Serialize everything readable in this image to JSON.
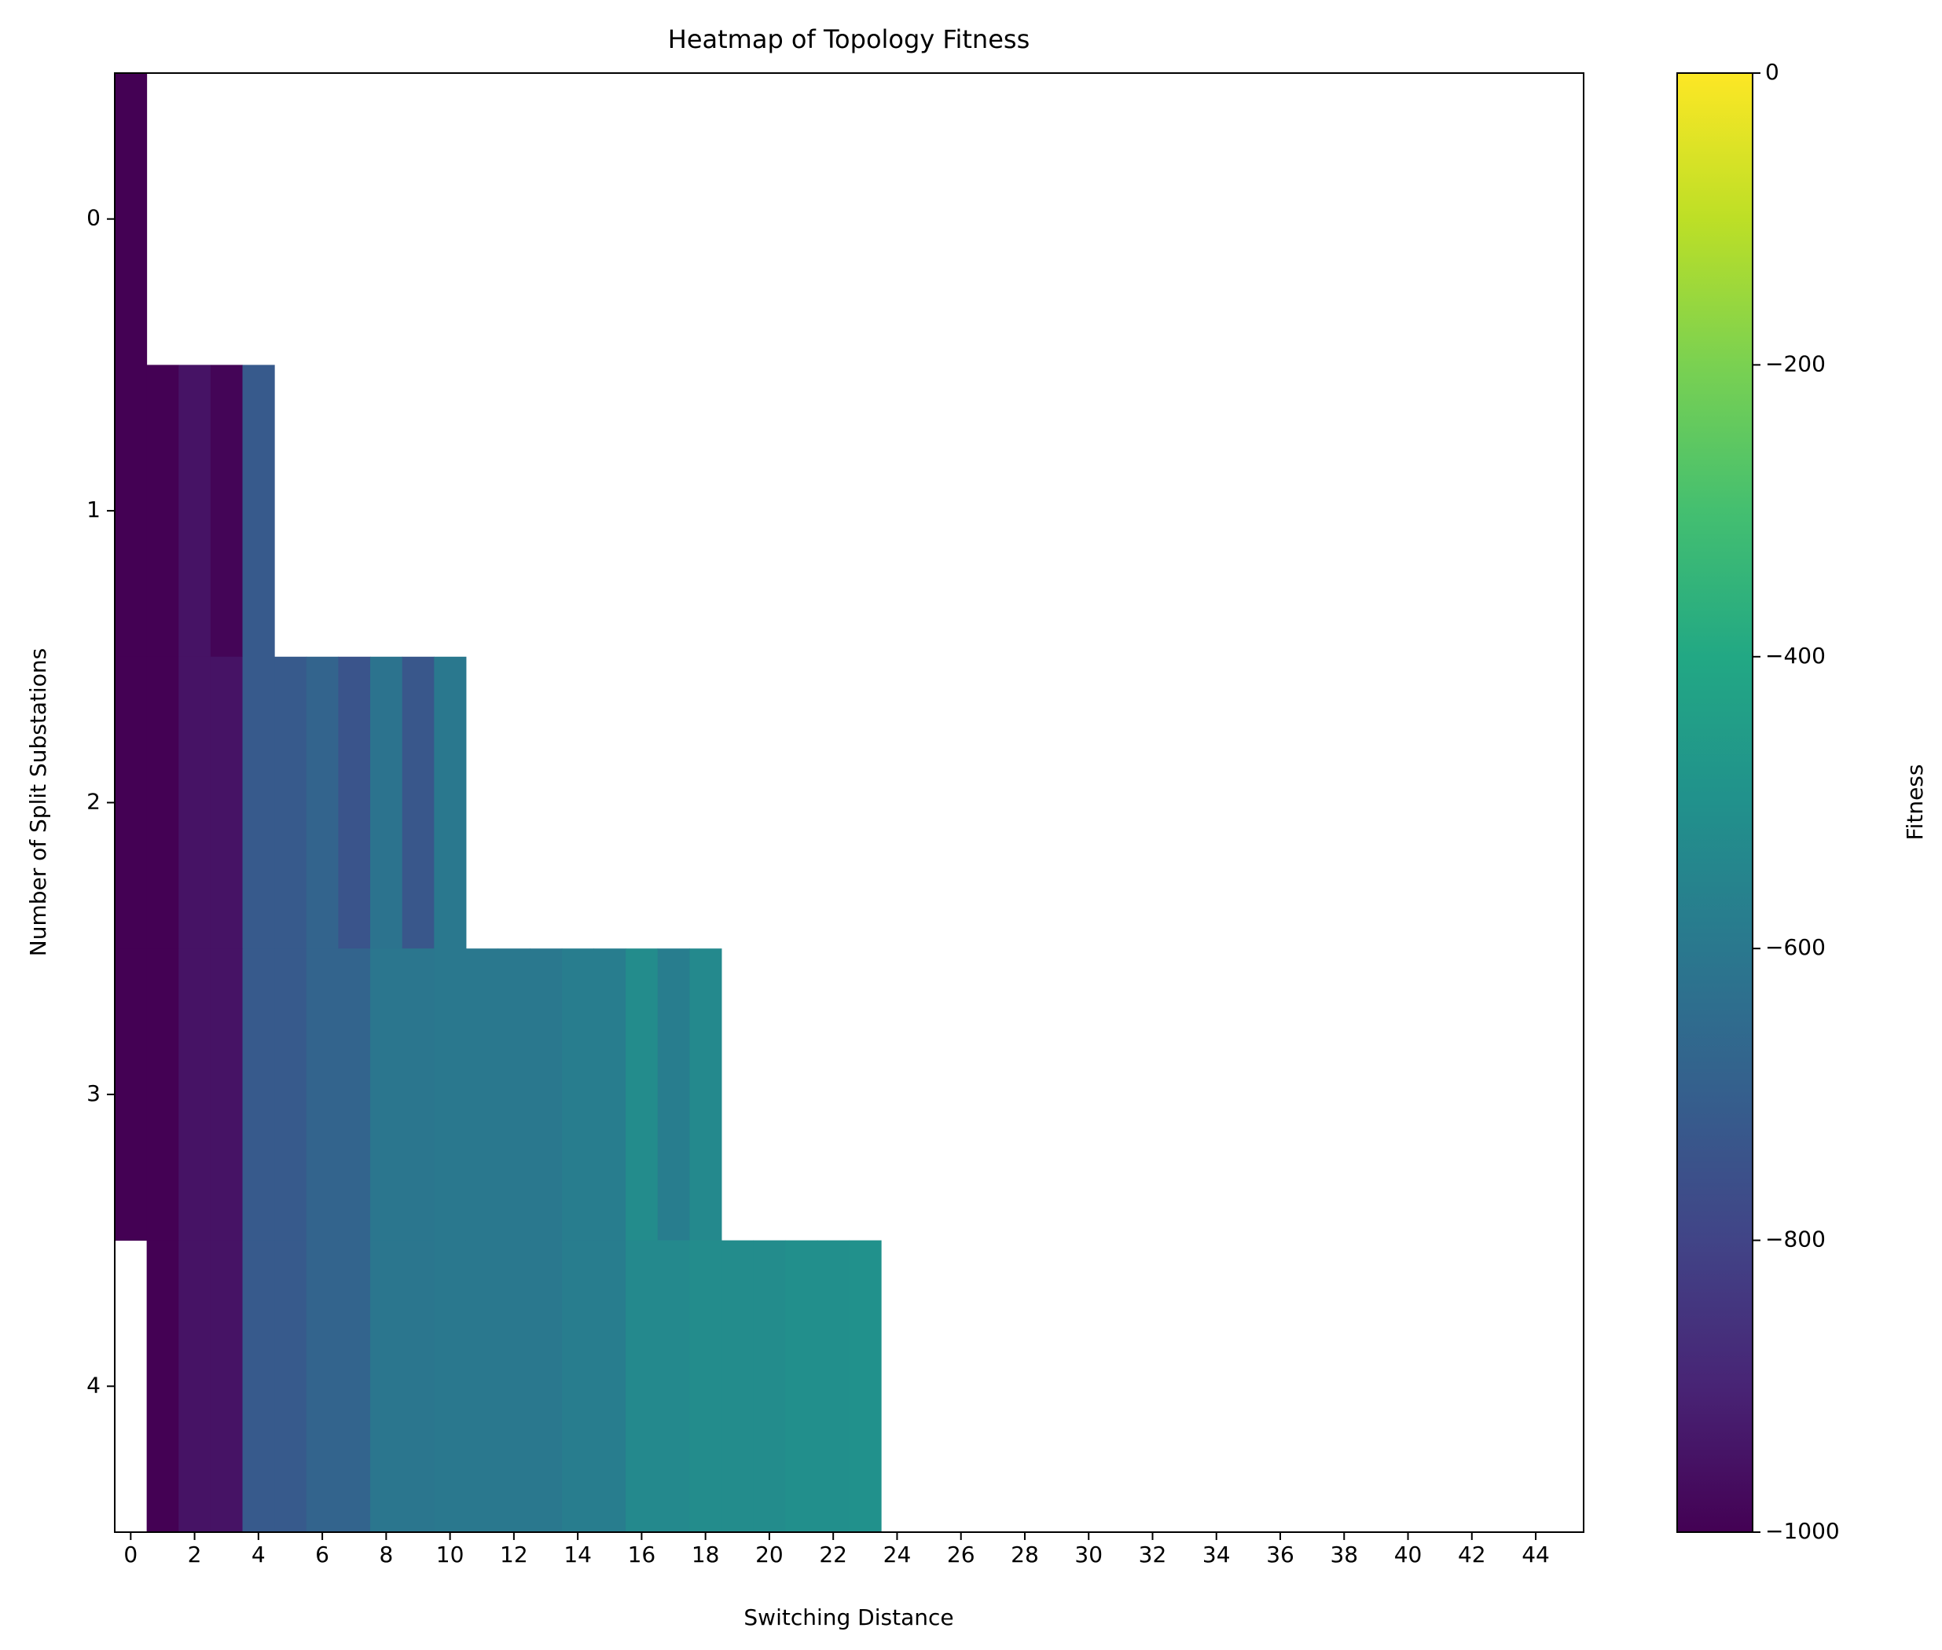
{
  "chart_data": {
    "type": "heatmap",
    "title": "Heatmap of Topology Fitness",
    "x_label": "Switching Distance",
    "y_label": "Number of Split Substations",
    "colorbar_label": "Fitness",
    "colormap": "viridis",
    "x": [
      0,
      1,
      2,
      3,
      4,
      5,
      6,
      7,
      8,
      9,
      10,
      11,
      12,
      13,
      14,
      15,
      16,
      17,
      18,
      19,
      20,
      21,
      22,
      23,
      24,
      25,
      26,
      27,
      28,
      29,
      30,
      31,
      32,
      33,
      34,
      35,
      36,
      37,
      38,
      39,
      40,
      41,
      42,
      43,
      44,
      45
    ],
    "y": [
      0,
      1,
      2,
      3,
      4
    ],
    "values": [
      [
        -1000,
        null,
        null,
        null,
        null,
        null,
        null,
        null,
        null,
        null,
        null,
        null,
        null,
        null,
        null,
        null,
        null,
        null,
        null,
        null,
        null,
        null,
        null,
        null,
        null,
        null,
        null,
        null,
        null,
        null,
        null,
        null,
        null,
        null,
        null,
        null,
        null,
        null,
        null,
        null,
        null,
        null,
        null,
        null,
        null,
        null
      ],
      [
        -1000,
        -1000,
        -950,
        -990,
        -720,
        null,
        null,
        null,
        null,
        null,
        null,
        null,
        null,
        null,
        null,
        null,
        null,
        null,
        null,
        null,
        null,
        null,
        null,
        null,
        null,
        null,
        null,
        null,
        null,
        null,
        null,
        null,
        null,
        null,
        null,
        null,
        null,
        null,
        null,
        null,
        null,
        null,
        null,
        null,
        null,
        null
      ],
      [
        -1000,
        -1000,
        -950,
        -950,
        -720,
        -720,
        -680,
        -740,
        -620,
        -730,
        -600,
        null,
        null,
        null,
        null,
        null,
        null,
        null,
        null,
        null,
        null,
        null,
        null,
        null,
        null,
        null,
        null,
        null,
        null,
        null,
        null,
        null,
        null,
        null,
        null,
        null,
        null,
        null,
        null,
        null,
        null,
        null,
        null,
        null,
        null,
        null
      ],
      [
        -1000,
        -1000,
        -950,
        -950,
        -720,
        -720,
        -680,
        -680,
        -610,
        -610,
        -600,
        -600,
        -600,
        -600,
        -580,
        -580,
        -520,
        -580,
        -530,
        null,
        null,
        null,
        null,
        null,
        null,
        null,
        null,
        null,
        null,
        null,
        null,
        null,
        null,
        null,
        null,
        null,
        null,
        null,
        null,
        null,
        null,
        null,
        null,
        null,
        null,
        null
      ],
      [
        null,
        -1000,
        -950,
        -950,
        -720,
        -720,
        -680,
        -680,
        -610,
        -610,
        -600,
        -600,
        -600,
        -600,
        -580,
        -580,
        -530,
        -530,
        -520,
        -520,
        -520,
        -510,
        -510,
        -500,
        null,
        null,
        null,
        null,
        null,
        null,
        null,
        null,
        null,
        null,
        null,
        null,
        null,
        null,
        null,
        null,
        null,
        null,
        null,
        null,
        null,
        null
      ]
    ],
    "xlim": [
      -0.5,
      45.5
    ],
    "xticks": [
      0,
      2,
      4,
      6,
      8,
      10,
      12,
      14,
      16,
      18,
      20,
      22,
      24,
      26,
      28,
      30,
      32,
      34,
      36,
      38,
      40,
      42,
      44
    ],
    "ylim": [
      4.5,
      -0.5
    ],
    "yticks": [
      0,
      1,
      2,
      3,
      4
    ],
    "clim": [
      -1000,
      0
    ],
    "cticks": [
      0,
      {
        "value": -200,
        "label": "−200"
      },
      {
        "value": -400,
        "label": "−400"
      },
      {
        "value": -600,
        "label": "−600"
      },
      {
        "value": -800,
        "label": "−800"
      },
      {
        "value": -1000,
        "label": "−1000"
      }
    ]
  }
}
